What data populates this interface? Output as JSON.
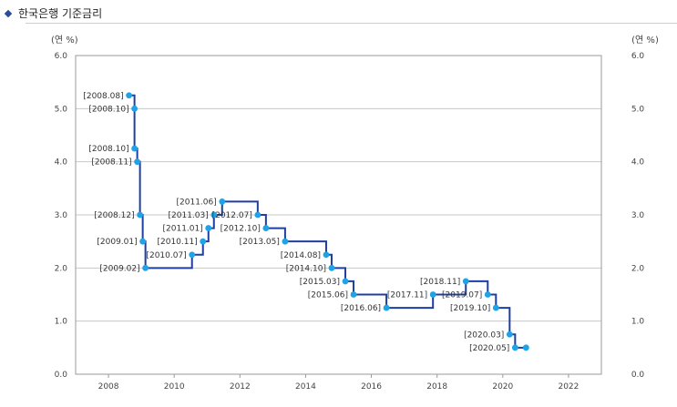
{
  "header": {
    "title": "한국은행 기준금리"
  },
  "chart_data": {
    "type": "line",
    "step": true,
    "title": "한국은행 기준금리",
    "ylabel_left": "(연 %)",
    "ylabel_right": "(연 %)",
    "xlim": [
      2007,
      2023
    ],
    "ylim": [
      0,
      6
    ],
    "x_ticks": [
      "2008",
      "2010",
      "2012",
      "2014",
      "2016",
      "2018",
      "2020",
      "2022"
    ],
    "y_ticks_left": [
      "0.0",
      "1.0",
      "2.0",
      "3.0",
      "4.0",
      "5.0",
      "6.0"
    ],
    "y_ticks_right": [
      "0.0",
      "1.0",
      "2.0",
      "3.0",
      "4.0",
      "5.0",
      "6.0"
    ],
    "grid": true,
    "line_color": "#1f3fa0",
    "marker_color": "#1ea3e6",
    "points": [
      {
        "date": "2008.08",
        "value": 5.25,
        "label": "[2008.08]"
      },
      {
        "date": "2008.10",
        "value": 5.0,
        "label": "[2008.10]"
      },
      {
        "date": "2008.10",
        "value": 4.25,
        "label": "[2008.10]"
      },
      {
        "date": "2008.11",
        "value": 4.0,
        "label": "[2008.11]"
      },
      {
        "date": "2008.12",
        "value": 3.0,
        "label": "[2008.12]"
      },
      {
        "date": "2009.01",
        "value": 2.5,
        "label": "[2009.01]"
      },
      {
        "date": "2009.02",
        "value": 2.0,
        "label": "[2009.02]"
      },
      {
        "date": "2010.07",
        "value": 2.25,
        "label": "[2010.07]"
      },
      {
        "date": "2010.11",
        "value": 2.5,
        "label": "[2010.11]"
      },
      {
        "date": "2011.01",
        "value": 2.75,
        "label": "[2011.01]"
      },
      {
        "date": "2011.03",
        "value": 3.0,
        "label": "[2011.03]"
      },
      {
        "date": "2011.06",
        "value": 3.25,
        "label": "[2011.06]"
      },
      {
        "date": "2012.07",
        "value": 3.0,
        "label": "[2012.07]"
      },
      {
        "date": "2012.10",
        "value": 2.75,
        "label": "[2012.10]"
      },
      {
        "date": "2013.05",
        "value": 2.5,
        "label": "[2013.05]"
      },
      {
        "date": "2014.08",
        "value": 2.25,
        "label": "[2014.08]"
      },
      {
        "date": "2014.10",
        "value": 2.0,
        "label": "[2014.10]"
      },
      {
        "date": "2015.03",
        "value": 1.75,
        "label": "[2015.03]"
      },
      {
        "date": "2015.06",
        "value": 1.5,
        "label": "[2015.06]"
      },
      {
        "date": "2016.06",
        "value": 1.25,
        "label": "[2016.06]"
      },
      {
        "date": "2017.11",
        "value": 1.5,
        "label": "[2017.11]"
      },
      {
        "date": "2018.11",
        "value": 1.75,
        "label": "[2018.11]"
      },
      {
        "date": "2019.07",
        "value": 1.5,
        "label": "[2019.07]"
      },
      {
        "date": "2019.10",
        "value": 1.25,
        "label": "[2019.10]"
      },
      {
        "date": "2020.03",
        "value": 0.75,
        "label": "[2020.03]"
      },
      {
        "date": "2020.05",
        "value": 0.5,
        "label": "[2020.05]"
      },
      {
        "date": "2020.09",
        "value": 0.5,
        "label": ""
      }
    ]
  }
}
